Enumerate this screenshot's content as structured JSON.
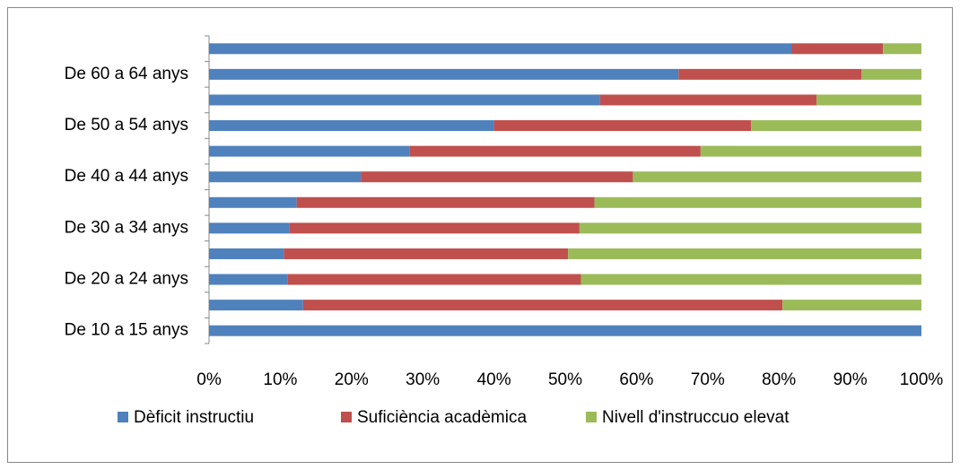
{
  "chart_data": {
    "type": "stacked-bar-horizontal",
    "categories": [
      "De 10 a 15 anys",
      null,
      "De 20 a 24 anys",
      null,
      "De 30 a 34 anys",
      null,
      "De 40 a 44 anys",
      null,
      "De 50 a 54 anys",
      null,
      "De 60 a 64 anys",
      null
    ],
    "series": [
      {
        "name": "Dèficit instructiu",
        "color": "#4f81bd",
        "values": [
          100,
          13.2,
          11,
          10.5,
          11.3,
          12.3,
          21.3,
          28.2,
          40,
          54.9,
          65.9,
          81.8
        ]
      },
      {
        "name": "Suficiència acadèmica",
        "color": "#c0504d",
        "values": [
          0,
          67.3,
          41.2,
          39.9,
          40.7,
          41.8,
          38.2,
          40.8,
          36.1,
          30.4,
          25.7,
          12.8
        ]
      },
      {
        "name": "Nivell d'instruccuo elevat",
        "color": "#9bbb59",
        "values": [
          0,
          19.5,
          47.8,
          49.6,
          48,
          45.9,
          40.5,
          31,
          23.9,
          14.7,
          8.4,
          5.4
        ]
      }
    ],
    "xlim": [
      0,
      100
    ],
    "xticks": [
      {
        "value": 0,
        "label": "0%"
      },
      {
        "value": 10,
        "label": "10%"
      },
      {
        "value": 20,
        "label": "20%"
      },
      {
        "value": 30,
        "label": "30%"
      },
      {
        "value": 40,
        "label": "40%"
      },
      {
        "value": 50,
        "label": "50%"
      },
      {
        "value": 60,
        "label": "60%"
      },
      {
        "value": 70,
        "label": "70%"
      },
      {
        "value": 80,
        "label": "80%"
      },
      {
        "value": 90,
        "label": "90%"
      },
      {
        "value": 100,
        "label": "100%"
      }
    ],
    "legend": "bottom",
    "grid": false
  }
}
